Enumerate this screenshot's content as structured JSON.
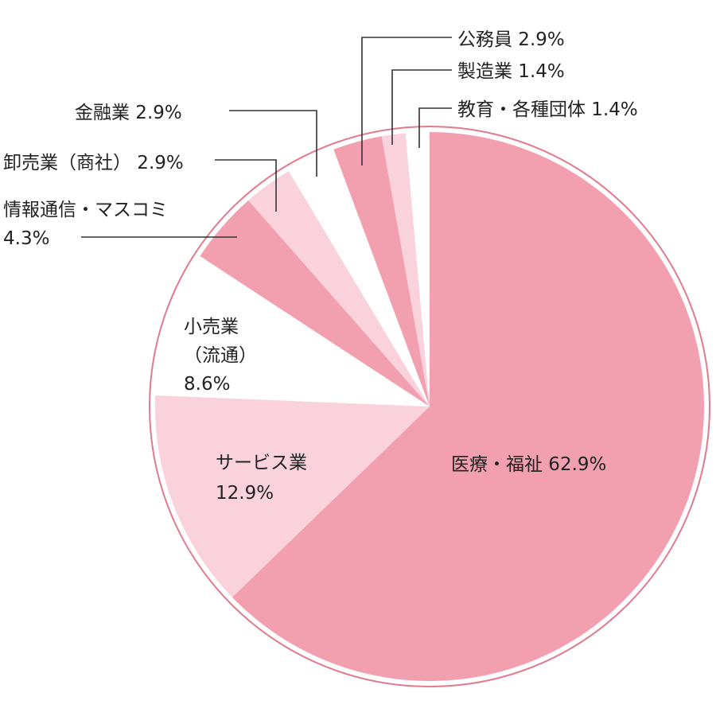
{
  "chart_data": {
    "type": "pie",
    "title": "",
    "slices": [
      {
        "label": "医療・福祉",
        "value": 62.9,
        "value_text": "62.9%",
        "color": "#f2a0b0"
      },
      {
        "label": "サービス業",
        "value": 12.9,
        "value_text": "12.9%",
        "color": "#f9d2dc"
      },
      {
        "label": "小売業（流通）",
        "value": 8.6,
        "value_text": "8.6%",
        "color": "#ffffff"
      },
      {
        "label": "情報通信・マスコミ",
        "value": 4.3,
        "value_text": "4.3%",
        "color": "#f2a0b0"
      },
      {
        "label": "卸売業（商社）",
        "value": 2.9,
        "value_text": "2.9%",
        "color": "#f9d2dc"
      },
      {
        "label": "金融業",
        "value": 2.9,
        "value_text": "2.9%",
        "color": "#ffffff"
      },
      {
        "label": "公務員",
        "value": 2.9,
        "value_text": "2.9%",
        "color": "#f2a0b0"
      },
      {
        "label": "製造業",
        "value": 1.4,
        "value_text": "1.4%",
        "color": "#f9d2dc"
      },
      {
        "label": "教育・各種団体",
        "value": 1.4,
        "value_text": "1.4%",
        "color": "#ffffff"
      }
    ],
    "labels": [
      {
        "lines": [
          "医療・福祉 62.9%"
        ]
      },
      {
        "lines": [
          "サービス業",
          "12.9%"
        ]
      },
      {
        "lines": [
          "小売業",
          "（流通）",
          "8.6%"
        ]
      },
      {
        "lines": [
          "情報通信・マスコミ",
          "4.3%"
        ]
      },
      {
        "lines": [
          "卸売業（商社） 2.9%"
        ]
      },
      {
        "lines": [
          "金融業 2.9%"
        ]
      },
      {
        "lines": [
          "公務員 2.9%"
        ]
      },
      {
        "lines": [
          "製造業 1.4%"
        ]
      },
      {
        "lines": [
          "教育・各種団体 1.4%"
        ]
      }
    ],
    "outline_color": "#e07a8c"
  }
}
